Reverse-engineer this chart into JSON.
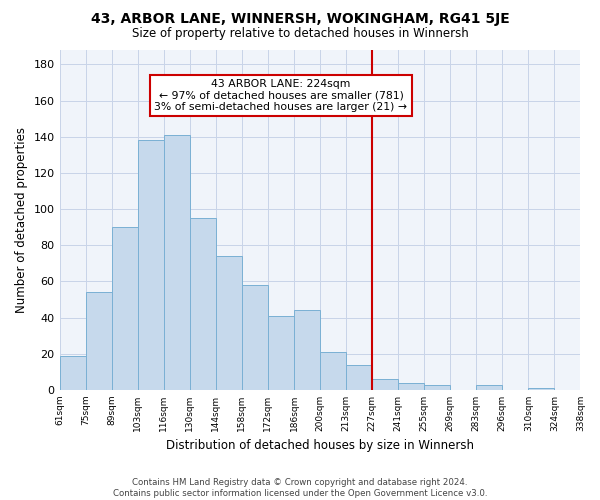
{
  "title": "43, ARBOR LANE, WINNERSH, WOKINGHAM, RG41 5JE",
  "subtitle": "Size of property relative to detached houses in Winnersh",
  "xlabel": "Distribution of detached houses by size in Winnersh",
  "ylabel": "Number of detached properties",
  "bin_edges": [
    "61sqm",
    "75sqm",
    "89sqm",
    "103sqm",
    "116sqm",
    "130sqm",
    "144sqm",
    "158sqm",
    "172sqm",
    "186sqm",
    "200sqm",
    "213sqm",
    "227sqm",
    "241sqm",
    "255sqm",
    "269sqm",
    "283sqm",
    "296sqm",
    "310sqm",
    "324sqm",
    "338sqm"
  ],
  "bar_heights": [
    19,
    54,
    90,
    138,
    141,
    95,
    74,
    58,
    41,
    44,
    21,
    14,
    6,
    4,
    3,
    0,
    3,
    0,
    1,
    0
  ],
  "bar_color": "#c6d9ec",
  "bar_edge_color": "#7ab0d4",
  "vline_position": 12,
  "vline_color": "#cc0000",
  "annotation_title": "43 ARBOR LANE: 224sqm",
  "annotation_line1": "← 97% of detached houses are smaller (781)",
  "annotation_line2": "3% of semi-detached houses are larger (21) →",
  "annotation_box_facecolor": "#ffffff",
  "annotation_box_edgecolor": "#cc0000",
  "ylim": [
    0,
    188
  ],
  "yticks": [
    0,
    20,
    40,
    60,
    80,
    100,
    120,
    140,
    160,
    180
  ],
  "footer_line1": "Contains HM Land Registry data © Crown copyright and database right 2024.",
  "footer_line2": "Contains public sector information licensed under the Open Government Licence v3.0.",
  "background_color": "#f0f4fa",
  "grid_color": "#c8d4e8"
}
